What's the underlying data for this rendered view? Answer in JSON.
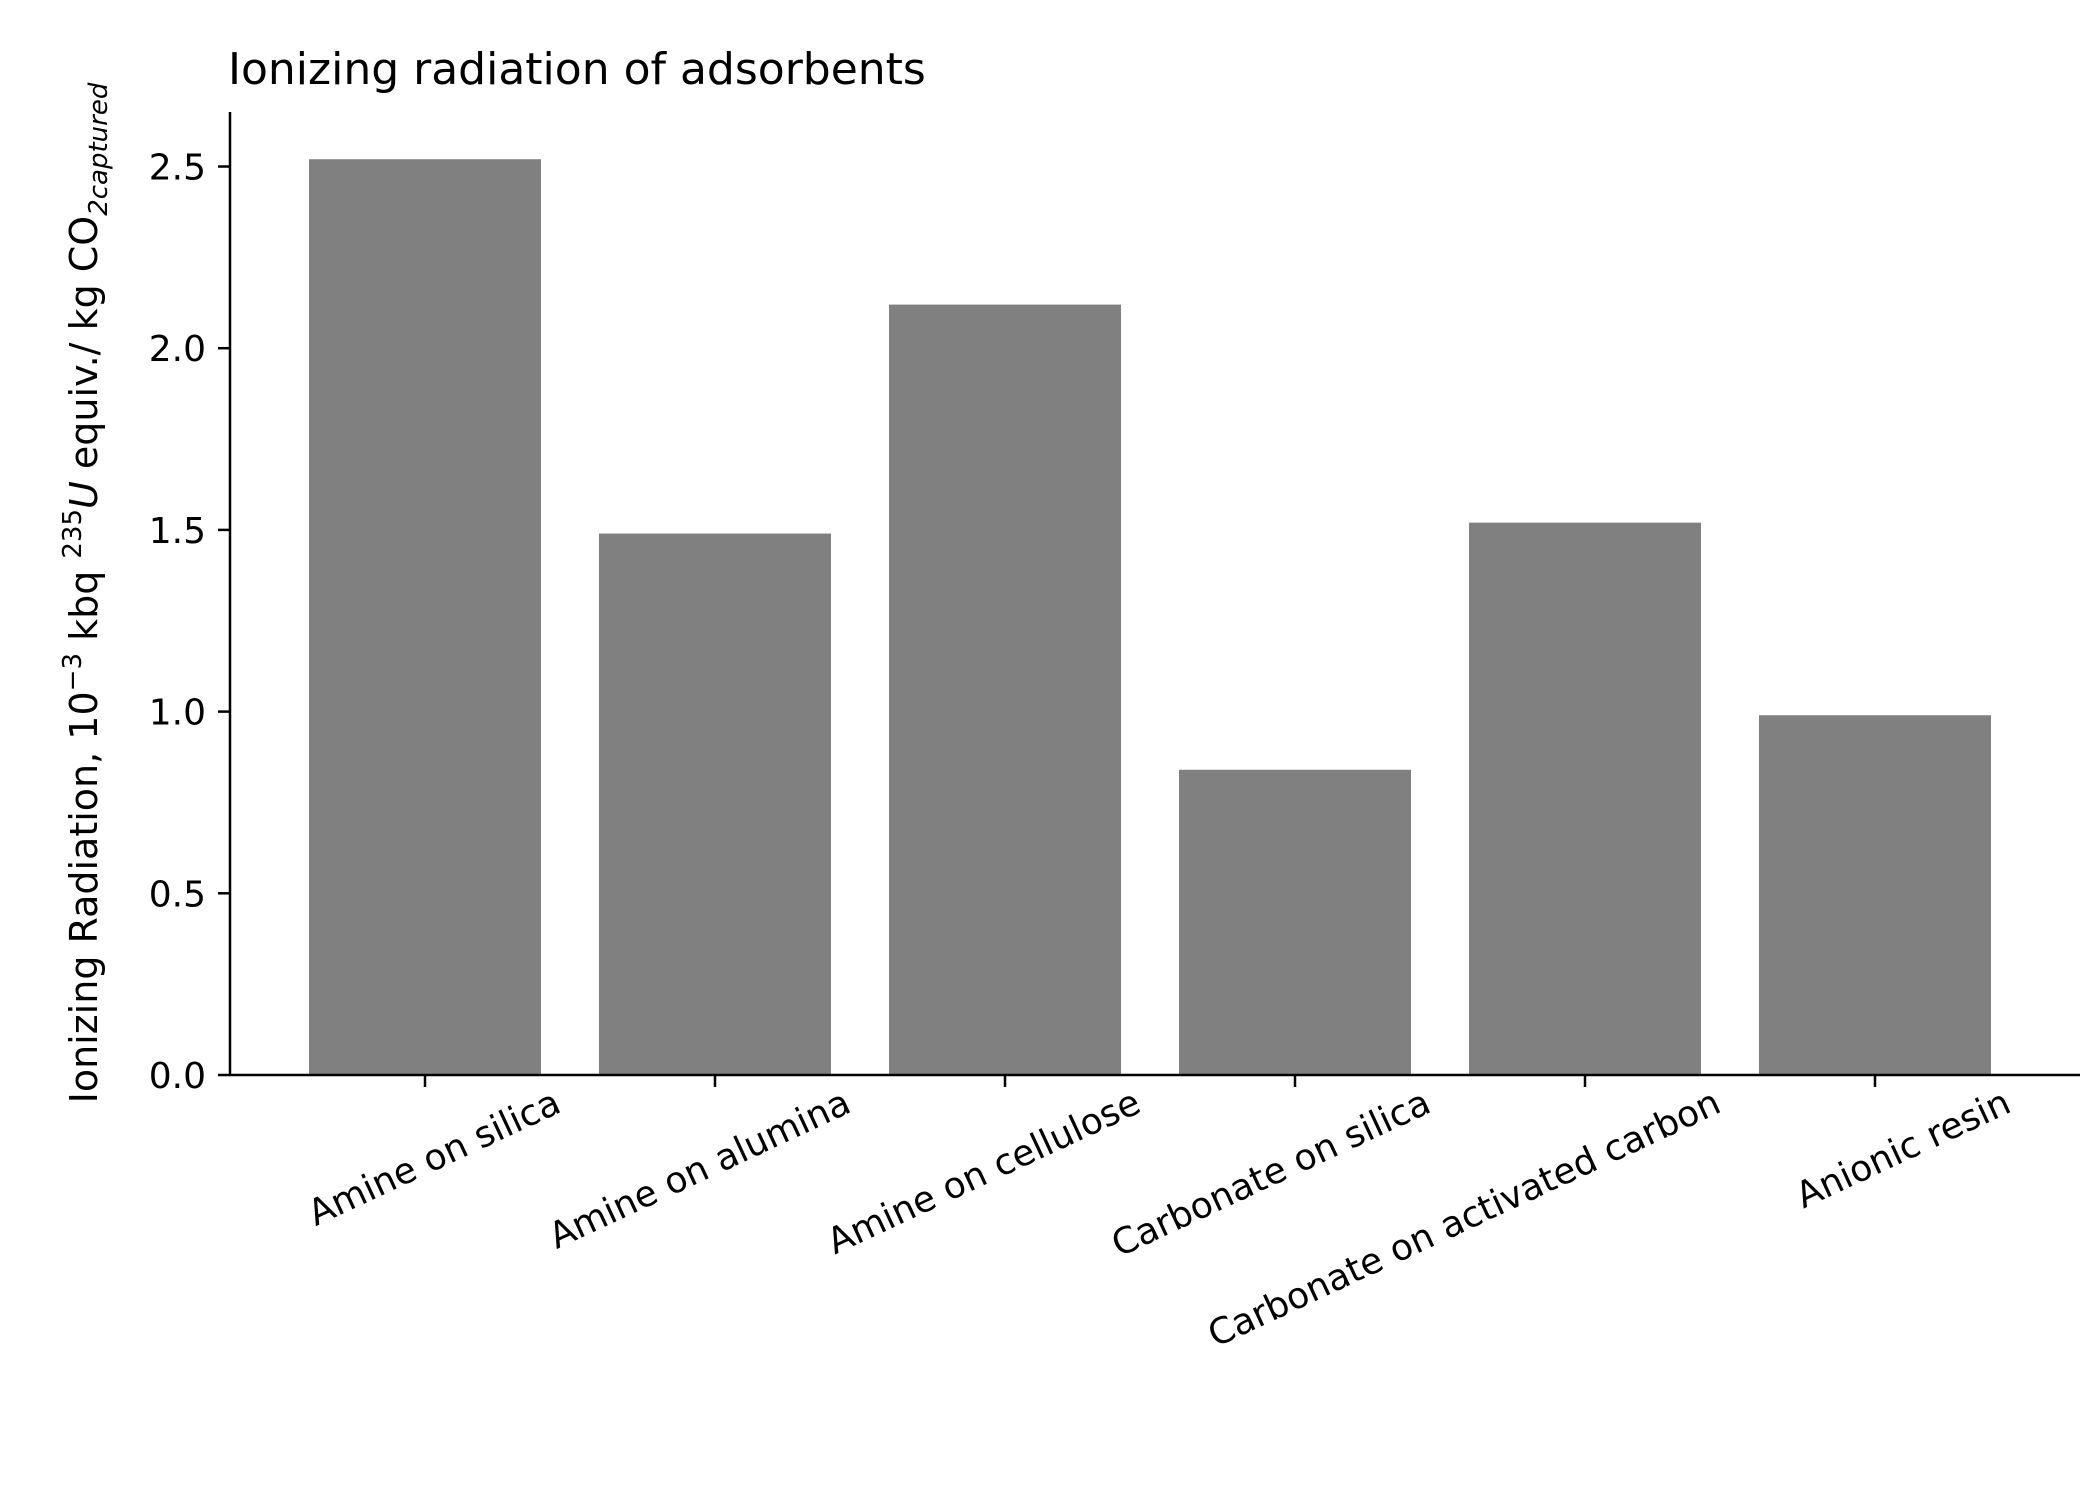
{
  "chart_data": {
    "type": "bar",
    "title": "Ionizing radiation of adsorbents",
    "ylabel": {
      "prefix": "Ionizing Radiation, 10",
      "exp": "−3",
      "mid1": " kbq ",
      "iso": "235",
      "elem": "U",
      "mid2": " equiv./ kg CO",
      "subscript": "2captured"
    },
    "xlabel": "",
    "categories": [
      "Amine on silica",
      "Amine on alumina",
      "Amine on cellulose",
      "Carbonate on silica",
      "Carbonate on activated carbon",
      "Anionic resin"
    ],
    "values": [
      2.52,
      1.49,
      2.12,
      0.84,
      1.52,
      0.99
    ],
    "ylim": [
      0,
      2.65
    ],
    "yticks": [
      0.0,
      0.5,
      1.0,
      1.5,
      2.0,
      2.5
    ],
    "ytick_labels": [
      "0.0",
      "0.5",
      "1.0",
      "1.5",
      "2.0",
      "2.5"
    ],
    "bar_color": "#808080",
    "grid": false,
    "legend": "none"
  }
}
